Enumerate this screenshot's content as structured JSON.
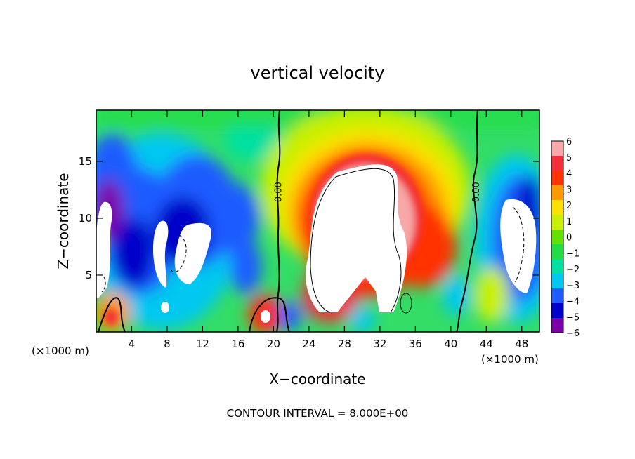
{
  "chart_data": {
    "type": "heatmap",
    "title": "vertical velocity",
    "xlabel": "X−coordinate",
    "ylabel": "Z−coordinate",
    "x_unit_left": "(×1000 m)",
    "x_unit_right": "(×1000 m)",
    "footer": "CONTOUR INTERVAL = 8.000E+00",
    "xlim": [
      0,
      50
    ],
    "ylim": [
      0,
      19.5
    ],
    "x_ticks": [
      4,
      8,
      12,
      16,
      20,
      24,
      28,
      32,
      36,
      40,
      44,
      48
    ],
    "x_tick_labels": [
      "4",
      "8",
      "12",
      "16",
      "20",
      "24",
      "28",
      "32",
      "36",
      "40",
      "44",
      "48"
    ],
    "y_ticks": [
      5,
      10,
      15
    ],
    "y_tick_labels": [
      "5",
      "10",
      "15"
    ],
    "contour_labels": [
      {
        "text": "0.00",
        "x": 20.5,
        "y": 12.3
      },
      {
        "text": "0.00",
        "x": 42.8,
        "y": 12.3
      }
    ],
    "colorbar": {
      "levels": [
        6,
        5,
        4,
        3,
        2,
        1,
        0,
        -1,
        -2,
        -3,
        -4,
        -5,
        -6
      ],
      "labels": [
        "6",
        "5",
        "4",
        "3",
        "2",
        "1",
        "0",
        "−1",
        "−2",
        "−3",
        "−4",
        "−5",
        "−6"
      ],
      "colors": [
        "#f7a8a8",
        "#f2303a",
        "#ff3300",
        "#ff9900",
        "#ffe000",
        "#c8f000",
        "#66e000",
        "#22dd44",
        "#00e0a0",
        "#00c8f0",
        "#1e5cff",
        "#0000c8",
        "#7a00a8"
      ]
    },
    "colors": {
      "clipped": "#ffffff",
      "contour": "#000000"
    }
  }
}
